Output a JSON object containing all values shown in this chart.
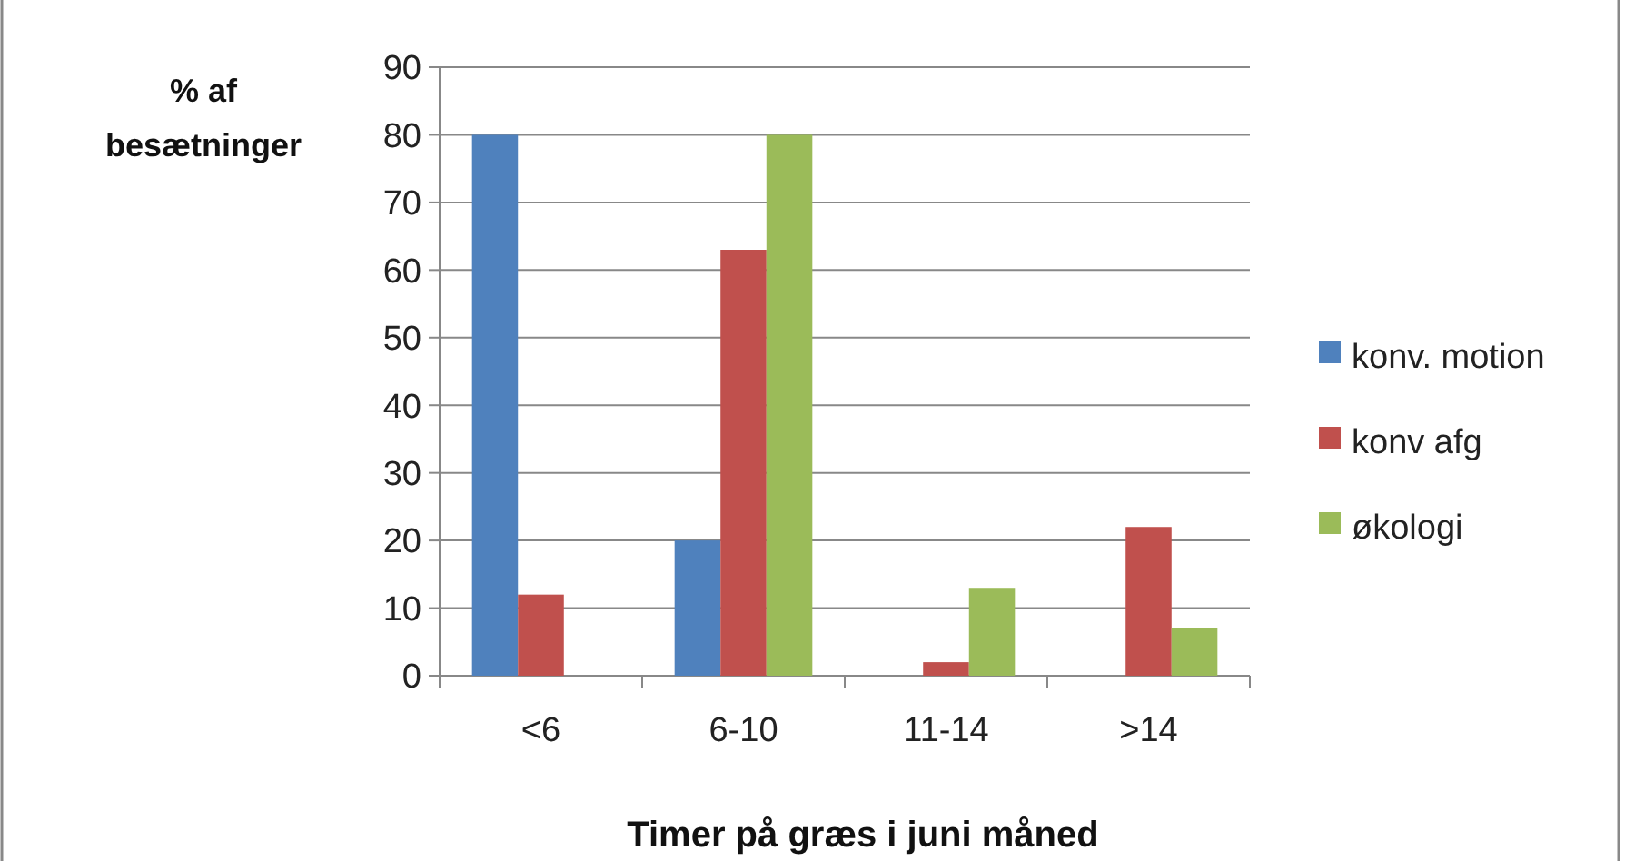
{
  "chart_data": {
    "type": "bar",
    "xlabel": "Timer på græs i juni måned",
    "ylabel": "% af besætninger",
    "categories": [
      "<6",
      "6-10",
      "11-14",
      ">14"
    ],
    "series": [
      {
        "name": "konv. motion",
        "color": "#4f81bd",
        "values": [
          80,
          20,
          0,
          0
        ]
      },
      {
        "name": "konv afg",
        "color": "#c0504d",
        "values": [
          12,
          63,
          2,
          22
        ]
      },
      {
        "name": "økologi",
        "color": "#9bbb59",
        "values": [
          0,
          80,
          13,
          7
        ]
      }
    ],
    "ylim": [
      0,
      90
    ],
    "yticks": [
      0,
      10,
      20,
      30,
      40,
      50,
      60,
      70,
      80,
      90
    ],
    "grid": "y",
    "legend": "right"
  }
}
